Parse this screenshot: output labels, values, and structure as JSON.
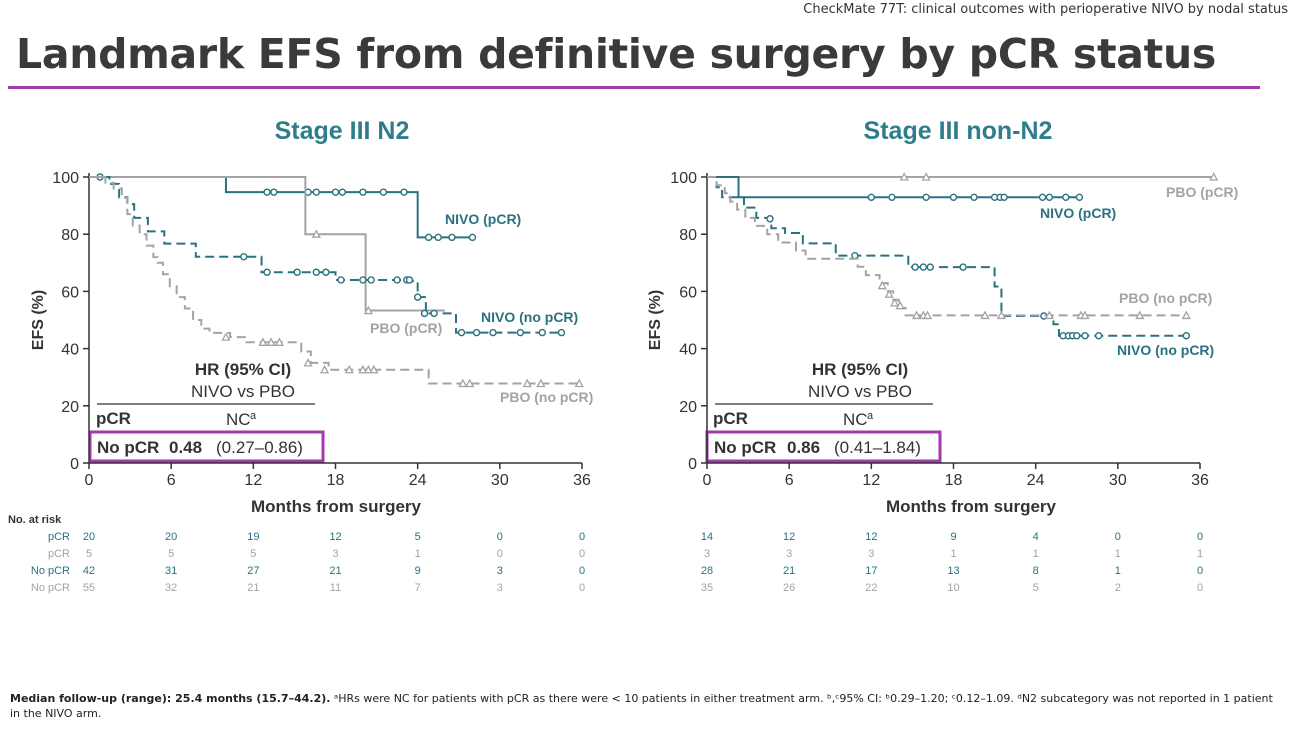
{
  "supertitle": "CheckMate 77T: clinical outcomes  with perioperative NIVO by nodal status",
  "title": "Landmark EFS from definitive surgery by pCR status",
  "footnote": {
    "bold": "Median follow-up (range): 25.4 months (15.7–44.2).",
    "text": " ᵃHRs were NC for patients with pCR as there were < 10 patients in either treatment arm. ᵇ,ᶜ95% CI: ᵇ0.29–1.20; ᶜ0.12–1.09. ᵈN2 subcategory was not reported in 1 patient in the NIVO arm."
  },
  "colors": {
    "nivo": "#2b7180",
    "pbo": "#a3a3a3",
    "accent": "#a33aae",
    "title_teal": "#2e7d8c"
  },
  "risk_header": "No. at risk",
  "chart_data": [
    {
      "type": "line",
      "title": "Stage III N2",
      "xlabel": "Months from surgery",
      "ylabel": "EFS (%)",
      "xlim": [
        0,
        36
      ],
      "ylim": [
        0,
        100
      ],
      "xticks": [
        0,
        6,
        12,
        18,
        24,
        30,
        36
      ],
      "yticks": [
        0,
        20,
        40,
        60,
        80,
        100
      ],
      "hr": {
        "header": "HR (95% CI)",
        "sub": "NIVO vs PBO",
        "pcr_label": "pCR",
        "pcr_value": "NC",
        "pcr_sup": "a",
        "nopcr_label": "No pCR",
        "nopcr_hr": "0.48",
        "nopcr_ci": "(0.27–0.86)"
      },
      "series": [
        {
          "name": "NIVO (pCR)",
          "arm": "nivo",
          "dashed": false,
          "steps": [
            [
              0,
              100
            ],
            [
              10,
              94.7
            ],
            [
              24,
              78.9
            ],
            [
              28,
              78.9
            ]
          ],
          "censors": [
            [
              0.8,
              100
            ],
            [
              13,
              94.7
            ],
            [
              13.5,
              94.7
            ],
            [
              16,
              94.7
            ],
            [
              16.6,
              94.7
            ],
            [
              18,
              94.7
            ],
            [
              18.5,
              94.7
            ],
            [
              20,
              94.7
            ],
            [
              21.5,
              94.7
            ],
            [
              23,
              94.7
            ],
            [
              24.8,
              78.9
            ],
            [
              25.5,
              78.9
            ],
            [
              26.5,
              78.9
            ],
            [
              28,
              78.9
            ]
          ]
        },
        {
          "name": "PBO (pCR)",
          "arm": "pbo",
          "dashed": false,
          "steps": [
            [
              0,
              100
            ],
            [
              15.8,
              80
            ],
            [
              20.2,
              53.3
            ],
            [
              26,
              53.3
            ]
          ],
          "censors": [
            [
              16.6,
              80
            ],
            [
              20.4,
              53.3
            ]
          ]
        },
        {
          "name": "NIVO (no pCR)",
          "arm": "nivo",
          "dashed": true,
          "steps": [
            [
              0,
              100
            ],
            [
              1.5,
              97.6
            ],
            [
              2.2,
              92.9
            ],
            [
              2.8,
              90.5
            ],
            [
              3.3,
              85.7
            ],
            [
              4.3,
              81
            ],
            [
              5.5,
              76.7
            ],
            [
              7.8,
              72.1
            ],
            [
              12.6,
              66.7
            ],
            [
              18,
              64
            ],
            [
              23.6,
              63.6
            ],
            [
              24,
              58
            ],
            [
              24.6,
              52.3
            ],
            [
              26.8,
              45.6
            ],
            [
              34.5,
              45.6
            ]
          ],
          "censors": [
            [
              11.3,
              72.1
            ],
            [
              13,
              66.7
            ],
            [
              15.2,
              66.7
            ],
            [
              16.6,
              66.7
            ],
            [
              17.3,
              66.7
            ],
            [
              18.4,
              64
            ],
            [
              20,
              64
            ],
            [
              20.6,
              64
            ],
            [
              22.5,
              64
            ],
            [
              23.2,
              64
            ],
            [
              23.4,
              64
            ],
            [
              24,
              58
            ],
            [
              24.5,
              52.3
            ],
            [
              25.2,
              52.3
            ],
            [
              27.2,
              45.6
            ],
            [
              28.3,
              45.6
            ],
            [
              29.5,
              45.6
            ],
            [
              31.5,
              45.6
            ],
            [
              33.1,
              45.6
            ],
            [
              34.5,
              45.6
            ]
          ]
        },
        {
          "name": "PBO (no pCR)",
          "arm": "pbo",
          "dashed": true,
          "steps": [
            [
              0,
              100
            ],
            [
              1.2,
              98
            ],
            [
              1.8,
              96
            ],
            [
              2.4,
              92.7
            ],
            [
              2.8,
              87
            ],
            [
              3.2,
              83
            ],
            [
              3.7,
              80
            ],
            [
              4.2,
              76
            ],
            [
              4.7,
              72
            ],
            [
              5,
              70
            ],
            [
              5.4,
              66
            ],
            [
              5.9,
              61.8
            ],
            [
              6.4,
              58
            ],
            [
              7,
              54
            ],
            [
              7.6,
              50
            ],
            [
              8.2,
              47
            ],
            [
              8.8,
              45.5
            ],
            [
              10.3,
              44
            ],
            [
              11.5,
              42.2
            ],
            [
              15.5,
              39
            ],
            [
              16.2,
              35
            ],
            [
              17.5,
              32.6
            ],
            [
              24.8,
              27.8
            ],
            [
              36,
              27.8
            ]
          ],
          "censors": [
            [
              10,
              44
            ],
            [
              12.7,
              42.2
            ],
            [
              13.3,
              42.2
            ],
            [
              13.9,
              42.2
            ],
            [
              16,
              35
            ],
            [
              17.2,
              32.6
            ],
            [
              19,
              32.6
            ],
            [
              20,
              32.6
            ],
            [
              20.4,
              32.6
            ],
            [
              20.8,
              32.6
            ],
            [
              27.3,
              27.8
            ],
            [
              27.8,
              27.8
            ],
            [
              32,
              27.8
            ],
            [
              33,
              27.8
            ],
            [
              35.8,
              27.8
            ]
          ]
        }
      ],
      "labels": {
        "nivo_pcr": "NIVO (pCR)",
        "pbo_pcr": "PBO (pCR)",
        "nivo_nopcr": "NIVO (no pCR)",
        "pbo_nopcr": "PBO (no pCR)"
      },
      "risk": {
        "times": [
          0,
          6,
          12,
          18,
          24,
          30,
          36
        ],
        "rows": [
          {
            "label": "pCR",
            "arm": "nivo",
            "values": [
              "20",
              "20",
              "19",
              "12",
              "5",
              "0",
              "0"
            ]
          },
          {
            "label": "pCR",
            "arm": "pbo",
            "values": [
              "5",
              "5",
              "5",
              "3",
              "1",
              "0",
              "0"
            ]
          },
          {
            "label": "No pCR",
            "arm": "nivo",
            "values": [
              "42",
              "31",
              "27",
              "21",
              "9",
              "3",
              "0"
            ]
          },
          {
            "label": "No pCR",
            "arm": "pbo",
            "values": [
              "55",
              "32",
              "21",
              "11",
              "7",
              "3",
              "0"
            ]
          }
        ]
      }
    },
    {
      "type": "line",
      "title": "Stage III non-N2",
      "xlabel": "Months from surgery",
      "ylabel": "EFS (%)",
      "xlim": [
        0,
        36
      ],
      "ylim": [
        0,
        100
      ],
      "xticks": [
        0,
        6,
        12,
        18,
        24,
        30,
        36
      ],
      "yticks": [
        0,
        20,
        40,
        60,
        80,
        100
      ],
      "hr": {
        "header": "HR (95% CI)",
        "sub": "NIVO vs PBO",
        "pcr_label": "pCR",
        "pcr_value": "NC",
        "pcr_sup": "a",
        "nopcr_label": "No pCR",
        "nopcr_hr": "0.86",
        "nopcr_ci": "(0.41–1.84)"
      },
      "series": [
        {
          "name": "PBO (pCR)",
          "arm": "pbo",
          "dashed": false,
          "steps": [
            [
              0,
              100
            ],
            [
              37,
              100
            ]
          ],
          "censors": [
            [
              14.4,
              100
            ],
            [
              16,
              100
            ],
            [
              37,
              100
            ]
          ]
        },
        {
          "name": "NIVO (pCR)",
          "arm": "nivo",
          "dashed": false,
          "steps": [
            [
              0,
              100
            ],
            [
              2.3,
              92.9
            ],
            [
              27.2,
              92.9
            ]
          ],
          "censors": [
            [
              12,
              92.9
            ],
            [
              13.5,
              92.9
            ],
            [
              16,
              92.9
            ],
            [
              18,
              92.9
            ],
            [
              19.5,
              92.9
            ],
            [
              21,
              92.9
            ],
            [
              21.4,
              92.9
            ],
            [
              21.7,
              92.9
            ],
            [
              24.5,
              92.9
            ],
            [
              25,
              92.9
            ],
            [
              26.2,
              92.9
            ],
            [
              27.2,
              92.9
            ]
          ]
        },
        {
          "name": "NIVO (no pCR)",
          "arm": "nivo",
          "dashed": true,
          "steps": [
            [
              0,
              100
            ],
            [
              0.7,
              96.4
            ],
            [
              1.1,
              92.9
            ],
            [
              2.7,
              89.3
            ],
            [
              3.6,
              85.7
            ],
            [
              4.7,
              82.1
            ],
            [
              5.7,
              80.4
            ],
            [
              7,
              76.8
            ],
            [
              9.4,
              72.5
            ],
            [
              14.7,
              68.5
            ],
            [
              21,
              61.7
            ],
            [
              21.5,
              51.4
            ],
            [
              25.3,
              48.5
            ],
            [
              25.7,
              44.5
            ],
            [
              35,
              44.5
            ]
          ],
          "censors": [
            [
              4.6,
              85.4
            ],
            [
              10.8,
              72.5
            ],
            [
              15.2,
              68.5
            ],
            [
              15.8,
              68.5
            ],
            [
              16.3,
              68.5
            ],
            [
              18.7,
              68.5
            ],
            [
              24.6,
              51.4
            ],
            [
              26,
              44.5
            ],
            [
              26.4,
              44.5
            ],
            [
              26.7,
              44.5
            ],
            [
              27,
              44.5
            ],
            [
              27.6,
              44.5
            ],
            [
              28.6,
              44.5
            ],
            [
              35,
              44.5
            ]
          ]
        },
        {
          "name": "PBO (no pCR)",
          "arm": "pbo",
          "dashed": true,
          "steps": [
            [
              0,
              100
            ],
            [
              0.7,
              97.1
            ],
            [
              1.3,
              94.3
            ],
            [
              1.7,
              91.4
            ],
            [
              2.2,
              88.6
            ],
            [
              2.8,
              85.7
            ],
            [
              3.5,
              82.9
            ],
            [
              4.4,
              80
            ],
            [
              5.2,
              77.1
            ],
            [
              6.5,
              74.3
            ],
            [
              7.2,
              71.4
            ],
            [
              11,
              68.6
            ],
            [
              11.6,
              65.7
            ],
            [
              12.6,
              62.9
            ],
            [
              13.2,
              60
            ],
            [
              13.6,
              57.1
            ],
            [
              14,
              54.2
            ],
            [
              14.5,
              51.6
            ],
            [
              35,
              51.6
            ]
          ],
          "censors": [
            [
              12.8,
              62
            ],
            [
              13.3,
              59
            ],
            [
              13.7,
              56
            ],
            [
              14.1,
              55
            ],
            [
              15.3,
              51.6
            ],
            [
              15.8,
              51.6
            ],
            [
              16.1,
              51.6
            ],
            [
              20.3,
              51.6
            ],
            [
              21.5,
              51.6
            ],
            [
              25,
              51.6
            ],
            [
              27.3,
              51.6
            ],
            [
              27.6,
              51.6
            ],
            [
              31.6,
              51.6
            ],
            [
              35,
              51.6
            ]
          ]
        }
      ],
      "labels": {
        "nivo_pcr": "NIVO (pCR)",
        "pbo_pcr": "PBO (pCR)",
        "nivo_nopcr": "NIVO (no pCR)",
        "pbo_nopcr": "PBO (no pCR)"
      },
      "risk": {
        "times": [
          0,
          6,
          12,
          18,
          24,
          30,
          36
        ],
        "rows": [
          {
            "label": "pCR",
            "arm": "nivo",
            "values": [
              "14",
              "12",
              "12",
              "9",
              "4",
              "0",
              "0"
            ]
          },
          {
            "label": "pCR",
            "arm": "pbo",
            "values": [
              "3",
              "3",
              "3",
              "1",
              "1",
              "1",
              "1"
            ]
          },
          {
            "label": "No pCR",
            "arm": "nivo",
            "values": [
              "28",
              "21",
              "17",
              "13",
              "8",
              "1",
              "0"
            ]
          },
          {
            "label": "No pCR",
            "arm": "pbo",
            "values": [
              "35",
              "26",
              "22",
              "10",
              "5",
              "2",
              "0"
            ]
          }
        ]
      }
    }
  ]
}
